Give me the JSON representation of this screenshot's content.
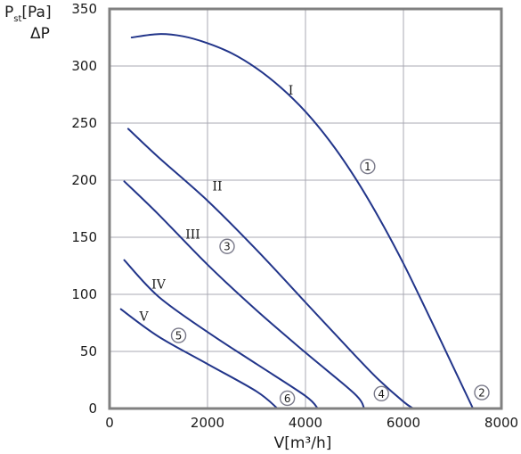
{
  "chart_data": {
    "type": "line",
    "y_title": {
      "main": "P",
      "sub": "st",
      "unit": "[Pa]",
      "line2": "ΔP"
    },
    "xlabel": "V[m³/h]",
    "xlim": [
      0,
      8000
    ],
    "ylim": [
      0,
      350
    ],
    "x_ticks": [
      "0",
      "2000",
      "4000",
      "6000",
      "8000"
    ],
    "y_ticks": [
      "0",
      "50",
      "100",
      "150",
      "200",
      "250",
      "300",
      "350"
    ],
    "x_tick_values": [
      0,
      2000,
      4000,
      6000,
      8000
    ],
    "y_tick_values": [
      0,
      50,
      100,
      150,
      200,
      250,
      300,
      350
    ],
    "grid": true,
    "colors": {
      "curve": "#22358a",
      "grid": "#a9a9b3",
      "frame": "#808080",
      "marker": "#7a7a8a"
    },
    "series": [
      {
        "label": "I",
        "label_at": [
          3700,
          275
        ],
        "x": [
          450,
          1000,
          1500,
          2000,
          2500,
          3000,
          3500,
          4000,
          4500,
          5000,
          5500,
          6000,
          6500,
          7000,
          7420
        ],
        "y": [
          325,
          328,
          326,
          320,
          311,
          298,
          281,
          260,
          234,
          203,
          167,
          127,
          83,
          38,
          0
        ]
      },
      {
        "label": "II",
        "label_at": [
          2200,
          191
        ],
        "x": [
          380,
          1000,
          2000,
          3000,
          4000,
          5000,
          5500,
          6000,
          6200
        ],
        "y": [
          245,
          220,
          182,
          139,
          93,
          47,
          25,
          6,
          0
        ]
      },
      {
        "label": "III",
        "label_at": [
          1700,
          149
        ],
        "x": [
          300,
          1000,
          2000,
          3000,
          4000,
          5000,
          5200
        ],
        "y": [
          199,
          170,
          126,
          86,
          49,
          13,
          0
        ]
      },
      {
        "label": "IV",
        "label_at": [
          1000,
          105
        ],
        "x": [
          300,
          1000,
          2000,
          3000,
          4000,
          4250
        ],
        "y": [
          130,
          98,
          67,
          39,
          11,
          0
        ]
      },
      {
        "label": "V",
        "label_at": [
          700,
          77
        ],
        "x": [
          230,
          1000,
          2000,
          3000,
          3430
        ],
        "y": [
          87,
          63,
          39,
          15,
          0
        ]
      }
    ],
    "markers": [
      {
        "label": "1",
        "x": 5270,
        "y": 212
      },
      {
        "label": "2",
        "x": 7600,
        "y": 14
      },
      {
        "label": "3",
        "x": 2400,
        "y": 142
      },
      {
        "label": "4",
        "x": 5550,
        "y": 13
      },
      {
        "label": "5",
        "x": 1410,
        "y": 64
      },
      {
        "label": "6",
        "x": 3630,
        "y": 9
      }
    ]
  }
}
